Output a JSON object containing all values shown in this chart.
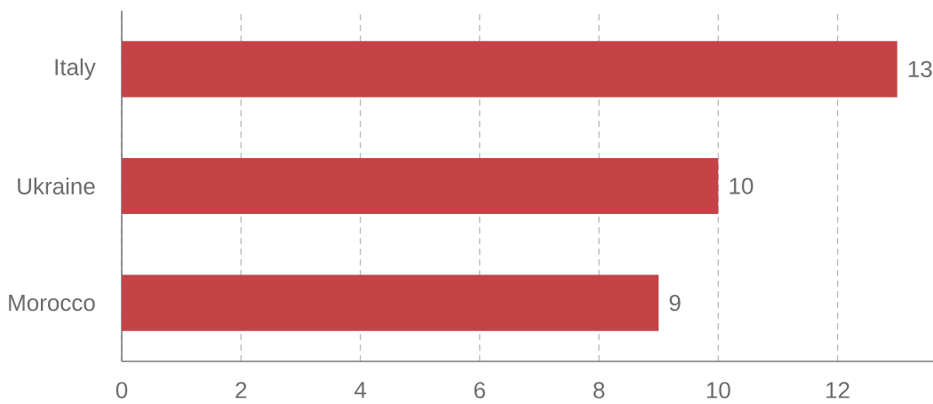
{
  "chart_data": {
    "type": "bar",
    "orientation": "horizontal",
    "categories": [
      "Italy",
      "Ukraine",
      "Morocco"
    ],
    "values": [
      13,
      10,
      9
    ],
    "color": "#c44346",
    "xlim": [
      0,
      13.6
    ],
    "xticks": [
      0,
      2,
      4,
      6,
      8,
      10,
      12
    ],
    "grid": "x",
    "data_labels": true
  }
}
